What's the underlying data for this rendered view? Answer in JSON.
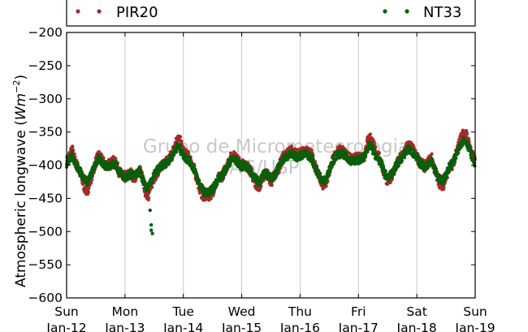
{
  "chart_data": {
    "type": "scatter",
    "ylabel_text": "Atmospheric longwave (",
    "ylabel_math": "Wm",
    "ylabel_exp": "−2",
    "ylabel_close": ")",
    "ylim": [
      -600,
      -200
    ],
    "yticks": [
      -200,
      -250,
      -300,
      -350,
      -400,
      -450,
      -500,
      -550,
      -600
    ],
    "ytick_labels": [
      "−200",
      "−250",
      "−300",
      "−350",
      "−400",
      "−450",
      "−500",
      "−550",
      "−600"
    ],
    "xlim": [
      "2014-01-12",
      "2014-01-19"
    ],
    "xticks": [
      {
        "top": "Sun",
        "bottom": "Jan-12"
      },
      {
        "top": "Mon",
        "bottom": "Jan-13"
      },
      {
        "top": "Tue",
        "bottom": "Jan-14"
      },
      {
        "top": "Wed",
        "bottom": "Jan-15"
      },
      {
        "top": "Thu",
        "bottom": "Jan-16"
      },
      {
        "top": "Fri",
        "bottom": "Jan-17"
      },
      {
        "top": "Sat",
        "bottom": "Jan-18"
      },
      {
        "top": "Sun",
        "bottom": "Jan-19"
      }
    ],
    "grid": "vertical",
    "legend_position": "top",
    "watermark": [
      "Grupo de Micrometeorologia",
      "IAG/USP"
    ],
    "series": [
      {
        "name": "PIR20",
        "color": "#a52a2a",
        "points": [
          [
            0.0,
            -395
          ],
          [
            0.05,
            -385
          ],
          [
            0.1,
            -378
          ],
          [
            0.15,
            -395
          ],
          [
            0.2,
            -405
          ],
          [
            0.25,
            -418
          ],
          [
            0.3,
            -432
          ],
          [
            0.35,
            -440
          ],
          [
            0.4,
            -425
          ],
          [
            0.45,
            -410
          ],
          [
            0.5,
            -395
          ],
          [
            0.55,
            -385
          ],
          [
            0.6,
            -392
          ],
          [
            0.65,
            -398
          ],
          [
            0.7,
            -400
          ],
          [
            0.75,
            -398
          ],
          [
            0.8,
            -395
          ],
          [
            0.85,
            -398
          ],
          [
            0.9,
            -410
          ],
          [
            0.95,
            -415
          ],
          [
            1.0,
            -418
          ],
          [
            1.05,
            -415
          ],
          [
            1.1,
            -412
          ],
          [
            1.15,
            -418
          ],
          [
            1.2,
            -415
          ],
          [
            1.25,
            -405
          ],
          [
            1.3,
            -420
          ],
          [
            1.35,
            -440
          ],
          [
            1.4,
            -445
          ],
          [
            1.45,
            -430
          ],
          [
            1.5,
            -418
          ],
          [
            1.55,
            -410
          ],
          [
            1.6,
            -405
          ],
          [
            1.65,
            -400
          ],
          [
            1.7,
            -395
          ],
          [
            1.75,
            -390
          ],
          [
            1.8,
            -385
          ],
          [
            1.85,
            -370
          ],
          [
            1.9,
            -360
          ],
          [
            1.95,
            -365
          ],
          [
            2.0,
            -380
          ],
          [
            2.05,
            -385
          ],
          [
            2.1,
            -388
          ],
          [
            2.15,
            -398
          ],
          [
            2.2,
            -410
          ],
          [
            2.25,
            -425
          ],
          [
            2.3,
            -440
          ],
          [
            2.35,
            -448
          ],
          [
            2.4,
            -445
          ],
          [
            2.45,
            -445
          ],
          [
            2.5,
            -440
          ],
          [
            2.55,
            -430
          ],
          [
            2.6,
            -420
          ],
          [
            2.65,
            -418
          ],
          [
            2.7,
            -410
          ],
          [
            2.75,
            -400
          ],
          [
            2.8,
            -390
          ],
          [
            2.85,
            -385
          ],
          [
            2.9,
            -390
          ],
          [
            2.95,
            -395
          ],
          [
            3.0,
            -400
          ],
          [
            3.05,
            -398
          ],
          [
            3.1,
            -402
          ],
          [
            3.15,
            -408
          ],
          [
            3.2,
            -420
          ],
          [
            3.25,
            -428
          ],
          [
            3.3,
            -432
          ],
          [
            3.35,
            -420
          ],
          [
            3.4,
            -412
          ],
          [
            3.45,
            -415
          ],
          [
            3.5,
            -425
          ],
          [
            3.55,
            -420
          ],
          [
            3.6,
            -410
          ],
          [
            3.65,
            -400
          ],
          [
            3.7,
            -390
          ],
          [
            3.75,
            -385
          ],
          [
            3.8,
            -382
          ],
          [
            3.85,
            -378
          ],
          [
            3.9,
            -380
          ],
          [
            3.95,
            -385
          ],
          [
            4.0,
            -383
          ],
          [
            4.05,
            -380
          ],
          [
            4.1,
            -378
          ],
          [
            4.15,
            -382
          ],
          [
            4.2,
            -385
          ],
          [
            4.25,
            -400
          ],
          [
            4.3,
            -412
          ],
          [
            4.35,
            -420
          ],
          [
            4.4,
            -430
          ],
          [
            4.45,
            -425
          ],
          [
            4.5,
            -410
          ],
          [
            4.55,
            -395
          ],
          [
            4.6,
            -385
          ],
          [
            4.65,
            -380
          ],
          [
            4.7,
            -378
          ],
          [
            4.75,
            -380
          ],
          [
            4.8,
            -385
          ],
          [
            4.85,
            -390
          ],
          [
            4.9,
            -392
          ],
          [
            4.95,
            -390
          ],
          [
            5.0,
            -390
          ],
          [
            5.05,
            -388
          ],
          [
            5.1,
            -385
          ],
          [
            5.15,
            -365
          ],
          [
            5.2,
            -358
          ],
          [
            5.25,
            -368
          ],
          [
            5.3,
            -380
          ],
          [
            5.35,
            -388
          ],
          [
            5.4,
            -398
          ],
          [
            5.45,
            -415
          ],
          [
            5.5,
            -425
          ],
          [
            5.55,
            -418
          ],
          [
            5.6,
            -410
          ],
          [
            5.65,
            -400
          ],
          [
            5.7,
            -392
          ],
          [
            5.75,
            -385
          ],
          [
            5.8,
            -378
          ],
          [
            5.85,
            -370
          ],
          [
            5.9,
            -372
          ],
          [
            5.95,
            -380
          ],
          [
            6.0,
            -388
          ],
          [
            6.05,
            -395
          ],
          [
            6.1,
            -400
          ],
          [
            6.15,
            -402
          ],
          [
            6.2,
            -395
          ],
          [
            6.25,
            -388
          ],
          [
            6.3,
            -405
          ],
          [
            6.35,
            -418
          ],
          [
            6.4,
            -428
          ],
          [
            6.45,
            -430
          ],
          [
            6.5,
            -418
          ],
          [
            6.55,
            -405
          ],
          [
            6.6,
            -400
          ],
          [
            6.65,
            -390
          ],
          [
            6.7,
            -375
          ],
          [
            6.75,
            -360
          ],
          [
            6.8,
            -352
          ],
          [
            6.85,
            -355
          ],
          [
            6.9,
            -370
          ],
          [
            6.95,
            -385
          ],
          [
            7.0,
            -395
          ]
        ]
      },
      {
        "name": "NT33",
        "color": "#0a5f0a",
        "points": [
          [
            0.0,
            -398
          ],
          [
            0.05,
            -390
          ],
          [
            0.1,
            -385
          ],
          [
            0.15,
            -398
          ],
          [
            0.2,
            -405
          ],
          [
            0.25,
            -412
          ],
          [
            0.3,
            -420
          ],
          [
            0.35,
            -425
          ],
          [
            0.4,
            -418
          ],
          [
            0.45,
            -408
          ],
          [
            0.5,
            -398
          ],
          [
            0.55,
            -390
          ],
          [
            0.6,
            -395
          ],
          [
            0.65,
            -400
          ],
          [
            0.7,
            -402
          ],
          [
            0.75,
            -400
          ],
          [
            0.8,
            -398
          ],
          [
            0.85,
            -400
          ],
          [
            0.9,
            -410
          ],
          [
            0.95,
            -415
          ],
          [
            1.0,
            -418
          ],
          [
            1.05,
            -416
          ],
          [
            1.1,
            -414
          ],
          [
            1.15,
            -416
          ],
          [
            1.2,
            -414
          ],
          [
            1.25,
            -408
          ],
          [
            1.3,
            -420
          ],
          [
            1.35,
            -432
          ],
          [
            1.4,
            -435
          ],
          [
            1.45,
            -425
          ],
          [
            1.5,
            -415
          ],
          [
            1.55,
            -408
          ],
          [
            1.6,
            -403
          ],
          [
            1.65,
            -400
          ],
          [
            1.7,
            -397
          ],
          [
            1.75,
            -393
          ],
          [
            1.8,
            -388
          ],
          [
            1.85,
            -378
          ],
          [
            1.9,
            -372
          ],
          [
            1.95,
            -376
          ],
          [
            2.0,
            -385
          ],
          [
            2.05,
            -390
          ],
          [
            2.1,
            -393
          ],
          [
            2.15,
            -400
          ],
          [
            2.2,
            -410
          ],
          [
            2.25,
            -422
          ],
          [
            2.3,
            -432
          ],
          [
            2.35,
            -440
          ],
          [
            2.4,
            -442
          ],
          [
            2.45,
            -440
          ],
          [
            2.5,
            -436
          ],
          [
            2.55,
            -428
          ],
          [
            2.6,
            -420
          ],
          [
            2.65,
            -418
          ],
          [
            2.7,
            -410
          ],
          [
            2.75,
            -402
          ],
          [
            2.8,
            -395
          ],
          [
            2.85,
            -390
          ],
          [
            2.9,
            -393
          ],
          [
            2.95,
            -398
          ],
          [
            3.0,
            -402
          ],
          [
            3.05,
            -400
          ],
          [
            3.1,
            -404
          ],
          [
            3.15,
            -408
          ],
          [
            3.2,
            -416
          ],
          [
            3.25,
            -422
          ],
          [
            3.3,
            -425
          ],
          [
            3.35,
            -418
          ],
          [
            3.4,
            -412
          ],
          [
            3.45,
            -414
          ],
          [
            3.5,
            -420
          ],
          [
            3.55,
            -416
          ],
          [
            3.6,
            -408
          ],
          [
            3.65,
            -400
          ],
          [
            3.7,
            -392
          ],
          [
            3.75,
            -388
          ],
          [
            3.8,
            -386
          ],
          [
            3.85,
            -383
          ],
          [
            3.9,
            -385
          ],
          [
            3.95,
            -388
          ],
          [
            4.0,
            -386
          ],
          [
            4.05,
            -384
          ],
          [
            4.1,
            -383
          ],
          [
            4.15,
            -386
          ],
          [
            4.2,
            -390
          ],
          [
            4.25,
            -402
          ],
          [
            4.3,
            -412
          ],
          [
            4.35,
            -418
          ],
          [
            4.4,
            -425
          ],
          [
            4.45,
            -420
          ],
          [
            4.5,
            -408
          ],
          [
            4.55,
            -396
          ],
          [
            4.6,
            -388
          ],
          [
            4.65,
            -384
          ],
          [
            4.7,
            -383
          ],
          [
            4.75,
            -384
          ],
          [
            4.8,
            -388
          ],
          [
            4.85,
            -392
          ],
          [
            4.9,
            -394
          ],
          [
            4.95,
            -393
          ],
          [
            5.0,
            -392
          ],
          [
            5.05,
            -390
          ],
          [
            5.1,
            -388
          ],
          [
            5.15,
            -375
          ],
          [
            5.2,
            -370
          ],
          [
            5.25,
            -378
          ],
          [
            5.3,
            -386
          ],
          [
            5.35,
            -392
          ],
          [
            5.4,
            -400
          ],
          [
            5.45,
            -412
          ],
          [
            5.5,
            -420
          ],
          [
            5.55,
            -415
          ],
          [
            5.6,
            -408
          ],
          [
            5.65,
            -400
          ],
          [
            5.7,
            -394
          ],
          [
            5.75,
            -388
          ],
          [
            5.8,
            -382
          ],
          [
            5.85,
            -376
          ],
          [
            5.9,
            -378
          ],
          [
            5.95,
            -384
          ],
          [
            6.0,
            -390
          ],
          [
            6.05,
            -396
          ],
          [
            6.1,
            -400
          ],
          [
            6.15,
            -402
          ],
          [
            6.2,
            -397
          ],
          [
            6.25,
            -392
          ],
          [
            6.3,
            -405
          ],
          [
            6.35,
            -415
          ],
          [
            6.4,
            -422
          ],
          [
            6.45,
            -423
          ],
          [
            6.5,
            -414
          ],
          [
            6.55,
            -404
          ],
          [
            6.6,
            -398
          ],
          [
            6.65,
            -390
          ],
          [
            6.7,
            -380
          ],
          [
            6.75,
            -368
          ],
          [
            6.8,
            -362
          ],
          [
            6.85,
            -365
          ],
          [
            6.9,
            -376
          ],
          [
            6.95,
            -388
          ],
          [
            7.0,
            -398
          ]
        ],
        "outliers": [
          [
            1.45,
            -490
          ],
          [
            1.45,
            -498
          ],
          [
            1.47,
            -503
          ],
          [
            1.43,
            -468
          ]
        ]
      }
    ]
  }
}
